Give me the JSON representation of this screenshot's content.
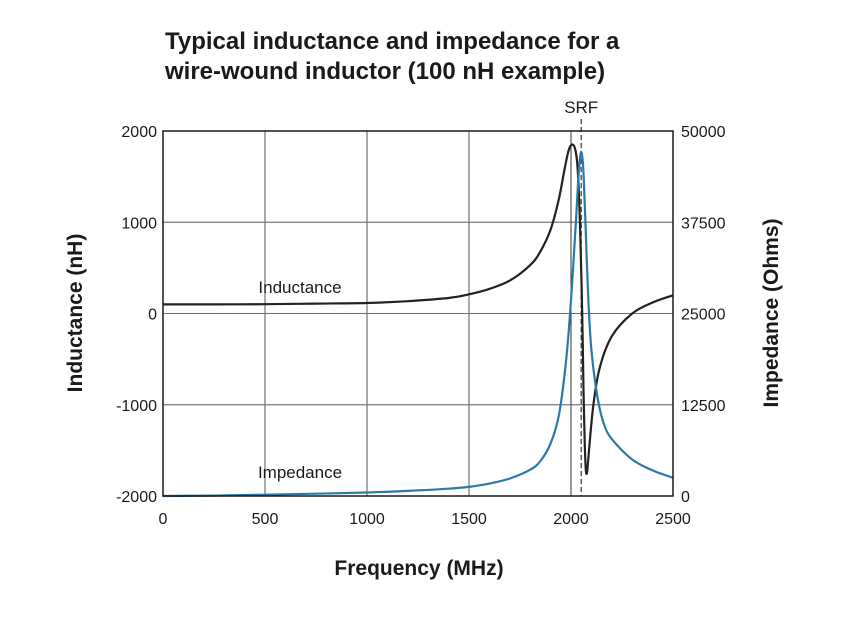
{
  "chart_data": {
    "type": "line",
    "title_lines": [
      "Typical inductance and impedance for a",
      "wire-wound inductor (100 nH example)"
    ],
    "xlabel": "Frequency (MHz)",
    "ylabel_left": "Inductance (nH)",
    "ylabel_right": "Impedance (Ohms)",
    "xlim": [
      0,
      2500
    ],
    "ylim_left": [
      -2000,
      2000
    ],
    "ylim_right": [
      0,
      50000
    ],
    "x_ticks": [
      "0",
      "500",
      "1000",
      "1500",
      "2000",
      "2500"
    ],
    "y_ticks_left": [
      "-2000",
      "-1000",
      "0",
      "1000",
      "2000"
    ],
    "y_ticks_right": [
      "0",
      "12500",
      "25000",
      "37500",
      "50000"
    ],
    "grid": true,
    "annotations": {
      "inductance_label": "Inductance",
      "impedance_label": "Impedance",
      "srf_label": "SRF"
    },
    "srf_x": 2050,
    "srf_solid_x": 2000,
    "series": [
      {
        "name": "Inductance",
        "axis": "left",
        "color": "#222222",
        "x": [
          0,
          250,
          500,
          750,
          1000,
          1200,
          1400,
          1500,
          1600,
          1700,
          1800,
          1850,
          1900,
          1940,
          1970,
          1990,
          2010,
          2025,
          2035,
          2045,
          2055,
          2062,
          2070,
          2078,
          2090,
          2110,
          2140,
          2200,
          2300,
          2400,
          2500
        ],
        "y": [
          100,
          100,
          102,
          108,
          115,
          135,
          170,
          210,
          270,
          360,
          530,
          680,
          920,
          1250,
          1600,
          1800,
          1850,
          1750,
          1500,
          900,
          0,
          -900,
          -1600,
          -1750,
          -1450,
          -1000,
          -600,
          -250,
          0,
          120,
          200
        ]
      },
      {
        "name": "Impedance",
        "axis": "right",
        "color": "#2a7aa6",
        "x": [
          0,
          250,
          500,
          750,
          1000,
          1200,
          1400,
          1500,
          1600,
          1700,
          1800,
          1850,
          1900,
          1940,
          1970,
          1990,
          2010,
          2025,
          2035,
          2045,
          2052,
          2060,
          2070,
          2085,
          2100,
          2130,
          2160,
          2200,
          2300,
          2400,
          2500
        ],
        "y": [
          0,
          60,
          180,
          320,
          480,
          700,
          1000,
          1250,
          1700,
          2400,
          3600,
          4800,
          7200,
          11000,
          17000,
          23000,
          31000,
          38000,
          43000,
          46500,
          47000,
          45000,
          38000,
          27000,
          20000,
          13500,
          10000,
          7800,
          5000,
          3500,
          2500
        ]
      }
    ]
  }
}
